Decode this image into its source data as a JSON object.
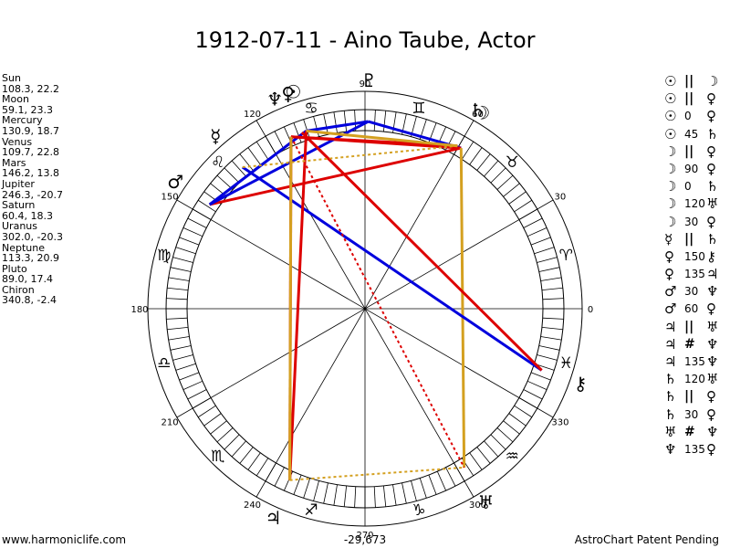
{
  "chart_data": {
    "type": "astrological-wheel",
    "title": "1912-07-11 - Aino Taube, Actor",
    "degree_labels": [
      "0",
      "30",
      "60",
      "90",
      "120",
      "150",
      "180",
      "210",
      "240",
      "270",
      "300",
      "330"
    ],
    "zodiac": [
      {
        "name": "Aries",
        "glyph": "♈"
      },
      {
        "name": "Taurus",
        "glyph": "♉"
      },
      {
        "name": "Gemini",
        "glyph": "♊"
      },
      {
        "name": "Cancer",
        "glyph": "♋"
      },
      {
        "name": "Leo",
        "glyph": "♌"
      },
      {
        "name": "Virgo",
        "glyph": "♍"
      },
      {
        "name": "Libra",
        "glyph": "♎"
      },
      {
        "name": "Scorpio",
        "glyph": "♏"
      },
      {
        "name": "Sagittarius",
        "glyph": "♐"
      },
      {
        "name": "Capricorn",
        "glyph": "♑"
      },
      {
        "name": "Aquarius",
        "glyph": "♒"
      },
      {
        "name": "Pisces",
        "glyph": "♓"
      }
    ],
    "planets": [
      {
        "name": "Sun",
        "glyph": "☉",
        "longitude": 108.3,
        "latitude": 22.2,
        "text": "108.3, 22.2"
      },
      {
        "name": "Moon",
        "glyph": "☽",
        "longitude": 59.1,
        "latitude": 23.3,
        "text": "59.1, 23.3"
      },
      {
        "name": "Mercury",
        "glyph": "☿",
        "longitude": 130.9,
        "latitude": 18.7,
        "text": "130.9, 18.7"
      },
      {
        "name": "Venus",
        "glyph": "♀",
        "longitude": 109.7,
        "latitude": 22.8,
        "text": "109.7, 22.8"
      },
      {
        "name": "Mars",
        "glyph": "♂",
        "longitude": 146.2,
        "latitude": 13.8,
        "text": "146.2, 13.8"
      },
      {
        "name": "Jupiter",
        "glyph": "♃",
        "longitude": 246.3,
        "latitude": -20.7,
        "text": "246.3, -20.7"
      },
      {
        "name": "Saturn",
        "glyph": "♄",
        "longitude": 60.4,
        "latitude": 18.3,
        "text": "60.4, 18.3"
      },
      {
        "name": "Uranus",
        "glyph": "♅",
        "longitude": 302.0,
        "latitude": -20.3,
        "text": "302.0, -20.3"
      },
      {
        "name": "Neptune",
        "glyph": "♆",
        "longitude": 113.3,
        "latitude": 20.9,
        "text": "113.3, 20.9"
      },
      {
        "name": "Pluto",
        "glyph": "♇",
        "longitude": 89.0,
        "latitude": 17.4,
        "text": "89.0, 17.4"
      },
      {
        "name": "Chiron",
        "glyph": "⚷",
        "longitude": 340.8,
        "latitude": -2.4,
        "text": "340.8, -2.4"
      }
    ],
    "aspect_lines": [
      {
        "from": "Sun",
        "to": "Pluto",
        "color": "#0000dd",
        "style": "solid"
      },
      {
        "from": "Sun",
        "to": "Mars",
        "color": "#0000dd",
        "style": "solid"
      },
      {
        "from": "Moon",
        "to": "Mars",
        "color": "#dd0000",
        "style": "solid"
      },
      {
        "from": "Moon",
        "to": "Pluto",
        "color": "#0000dd",
        "style": "solid"
      },
      {
        "from": "Moon",
        "to": "Neptune",
        "color": "#dd0000",
        "style": "solid"
      },
      {
        "from": "Moon",
        "to": "Uranus",
        "color": "#d4a020",
        "style": "solid"
      },
      {
        "from": "Mercury",
        "to": "Chiron",
        "color": "#0000dd",
        "style": "solid"
      },
      {
        "from": "Mars",
        "to": "Pluto",
        "color": "#0000dd",
        "style": "solid"
      },
      {
        "from": "Venus",
        "to": "Chiron",
        "color": "#dd0000",
        "style": "solid"
      },
      {
        "from": "Jupiter",
        "to": "Neptune",
        "color": "#dd0000",
        "style": "solid"
      },
      {
        "from": "Jupiter",
        "to": "Sun",
        "color": "#dd0000",
        "style": "solid"
      },
      {
        "from": "Saturn",
        "to": "Neptune",
        "color": "#dd0000",
        "style": "solid"
      },
      {
        "from": "Sun",
        "to": "Saturn",
        "color": "#d4a020",
        "style": "solid"
      },
      {
        "from": "Neptune",
        "to": "Uranus",
        "color": "#dd0000",
        "style": "dotted"
      },
      {
        "from": "Jupiter",
        "to": "Uranus",
        "color": "#d4a020",
        "style": "dotted"
      },
      {
        "from": "Mercury",
        "to": "Saturn",
        "color": "#d4a020",
        "style": "dotted"
      },
      {
        "from": "Neptune",
        "to": "Jupiter",
        "color": "#d4a020",
        "style": "solid"
      }
    ]
  },
  "planet_list": [
    {
      "name": "Sun",
      "value": "108.3, 22.2"
    },
    {
      "name": "Moon",
      "value": "59.1, 23.3"
    },
    {
      "name": "Mercury",
      "value": "130.9, 18.7"
    },
    {
      "name": "Venus",
      "value": "109.7, 22.8"
    },
    {
      "name": "Mars",
      "value": "146.2, 13.8"
    },
    {
      "name": "Jupiter",
      "value": "246.3, -20.7"
    },
    {
      "name": "Saturn",
      "value": "60.4, 18.3"
    },
    {
      "name": "Uranus",
      "value": "302.0, -20.3"
    },
    {
      "name": "Neptune",
      "value": "113.3, 20.9"
    },
    {
      "name": "Pluto",
      "value": "89.0, 17.4"
    },
    {
      "name": "Chiron",
      "value": "340.8, -2.4"
    }
  ],
  "aspect_list": [
    {
      "p1": "☉",
      "asp": "||",
      "p2": "☽"
    },
    {
      "p1": "☉",
      "asp": "||",
      "p2": "♀"
    },
    {
      "p1": "☉",
      "asp": "0",
      "p2": "♀"
    },
    {
      "p1": "☉",
      "asp": "45",
      "p2": "♄"
    },
    {
      "p1": "☽",
      "asp": "||",
      "p2": "♀"
    },
    {
      "p1": "☽",
      "asp": "90",
      "p2": "♀"
    },
    {
      "p1": "☽",
      "asp": "0",
      "p2": "♄"
    },
    {
      "p1": "☽",
      "asp": "120",
      "p2": "♅"
    },
    {
      "p1": "☽",
      "asp": "30",
      "p2": "♀"
    },
    {
      "p1": "☿",
      "asp": "||",
      "p2": "♄"
    },
    {
      "p1": "♀",
      "asp": "150",
      "p2": "⚷"
    },
    {
      "p1": "♀",
      "asp": "135",
      "p2": "♃"
    },
    {
      "p1": "♂",
      "asp": "30",
      "p2": "♆"
    },
    {
      "p1": "♂",
      "asp": "60",
      "p2": "♀"
    },
    {
      "p1": "♃",
      "asp": "||",
      "p2": "♅"
    },
    {
      "p1": "♃",
      "asp": "#",
      "p2": "♆"
    },
    {
      "p1": "♃",
      "asp": "135",
      "p2": "♆"
    },
    {
      "p1": "♄",
      "asp": "120",
      "p2": "♅"
    },
    {
      "p1": "♄",
      "asp": "||",
      "p2": "♀"
    },
    {
      "p1": "♄",
      "asp": "30",
      "p2": "♀"
    },
    {
      "p1": "♅",
      "asp": "#",
      "p2": "♆"
    },
    {
      "p1": "♆",
      "asp": "135",
      "p2": "♀"
    }
  ],
  "footer": {
    "left": "www.harmoniclife.com",
    "center": "-29,673",
    "right": "AstroChart Patent Pending"
  },
  "colors": {
    "blue": "#0000dd",
    "red": "#dd0000",
    "gold": "#d4a020"
  }
}
